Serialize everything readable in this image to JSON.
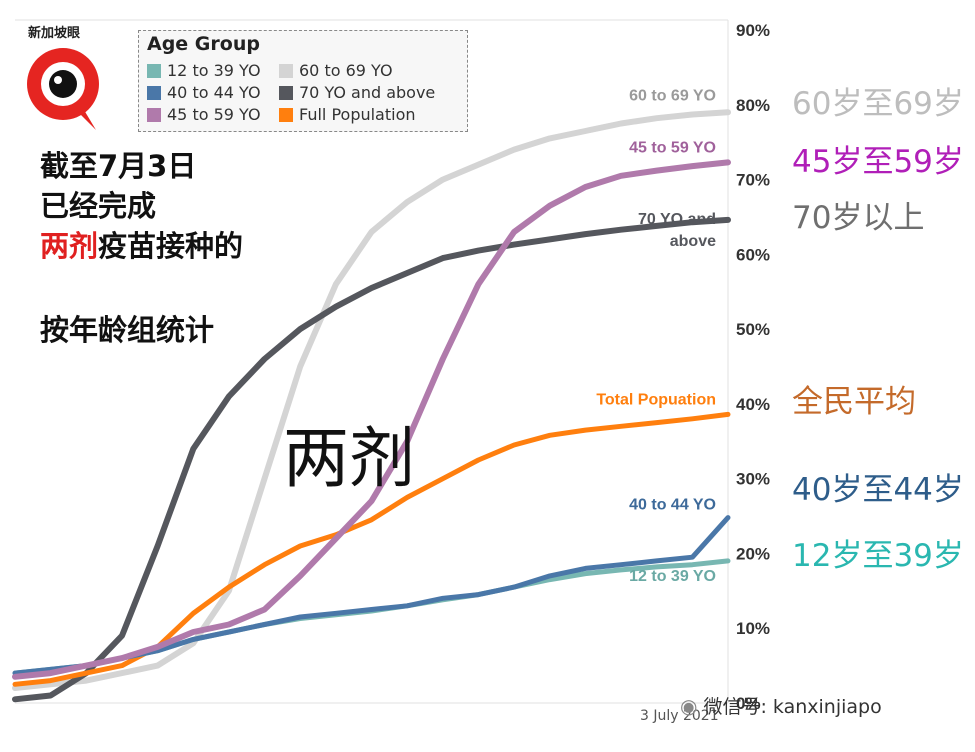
{
  "chart_data": {
    "type": "line",
    "ylim": [
      0,
      90
    ],
    "yticks": [
      "0%",
      "10%",
      "20%",
      "30%",
      "40%",
      "50%",
      "60%",
      "70%",
      "80%",
      "90%"
    ],
    "x_end_label": "3 July 2021",
    "legend": {
      "title": "Age Group",
      "items": [
        {
          "label": "12 to 39 YO",
          "color": "#78b7b2"
        },
        {
          "label": "60 to 69 YO",
          "color": "#d4d4d4"
        },
        {
          "label": "40 to 44 YO",
          "color": "#4a77a8"
        },
        {
          "label": "70 YO and above",
          "color": "#55575d"
        },
        {
          "label": "45 to 59 YO",
          "color": "#b07aab"
        },
        {
          "label": "Full Population",
          "color": "#ff7f0e"
        }
      ]
    },
    "x": [
      0,
      5,
      10,
      15,
      20,
      25,
      30,
      35,
      40,
      45,
      50,
      55,
      60,
      65,
      70,
      75,
      80,
      85,
      90,
      95,
      100
    ],
    "series": [
      {
        "name": "60 to 69 YO",
        "end_label": "60 to 69 YO",
        "color": "#d4d4d4",
        "width": 6,
        "values": [
          2,
          2.5,
          3,
          4,
          5,
          8,
          15,
          30,
          45,
          56,
          63,
          67,
          70,
          72,
          74,
          75.5,
          76.5,
          77.5,
          78.2,
          78.7,
          79
        ]
      },
      {
        "name": "70 YO and above",
        "end_label": "70 YO and\nabove",
        "color": "#55575d",
        "width": 6,
        "values": [
          0.5,
          1,
          4,
          9,
          21,
          34,
          41,
          46,
          50,
          53,
          55.5,
          57.5,
          59.5,
          60.5,
          61.3,
          62,
          62.7,
          63.3,
          63.8,
          64.3,
          64.6
        ]
      },
      {
        "name": "45 to 59 YO",
        "end_label": "45 to 59 YO",
        "color": "#b07aab",
        "width": 6,
        "values": [
          3.5,
          4,
          5,
          6,
          7.5,
          9.5,
          10.5,
          12.5,
          17,
          22,
          27,
          35,
          46,
          56,
          63,
          66.5,
          69,
          70.5,
          71.2,
          71.8,
          72.3
        ]
      },
      {
        "name": "Full Population",
        "end_label": "Total Popuation",
        "color": "#ff7f0e",
        "width": 5,
        "values": [
          2.5,
          3,
          4,
          5,
          7.5,
          12,
          15.5,
          18.5,
          21,
          22.5,
          24.5,
          27.5,
          30,
          32.5,
          34.5,
          35.8,
          36.5,
          37,
          37.5,
          38,
          38.6
        ]
      },
      {
        "name": "40 to 44 YO",
        "end_label": "40 to 44 YO",
        "color": "#4a77a8",
        "width": 5,
        "values": [
          4,
          4.5,
          5,
          6,
          7,
          8.5,
          9.5,
          10.5,
          11.5,
          12,
          12.5,
          13,
          14,
          14.5,
          15.5,
          17,
          18,
          18.5,
          19,
          19.5,
          24.8
        ]
      },
      {
        "name": "12 to 39 YO",
        "end_label": "12 to 39 YO",
        "color": "#78b7b2",
        "width": 5,
        "values": [
          4,
          4.5,
          5,
          6,
          7,
          8.5,
          9.5,
          10.5,
          11.3,
          11.8,
          12.3,
          13,
          13.8,
          14.5,
          15.5,
          16.5,
          17.3,
          17.8,
          18.2,
          18.5,
          19
        ]
      }
    ]
  },
  "annotation": {
    "line1": "截至7月3日",
    "line2": "已经完成",
    "line3_red": "两剂",
    "line3_rest": "疫苗接种的",
    "line4": "按年龄组统计"
  },
  "big_label": "两剂",
  "cn_labels": [
    {
      "text": "60岁至69岁",
      "color": "#bdbdbd"
    },
    {
      "text": "45岁至59岁",
      "color": "#b01fb8"
    },
    {
      "text": "70岁以上",
      "color": "#6f6f6f"
    },
    {
      "text": "全民平均",
      "color": "#c46a2a"
    },
    {
      "text": "40岁至44岁",
      "color": "#2e5d8a"
    },
    {
      "text": "12岁至39岁",
      "color": "#2ab7b0"
    }
  ],
  "logo_text": "新加坡眼",
  "watermark": "微信号: kanxinjiapo"
}
